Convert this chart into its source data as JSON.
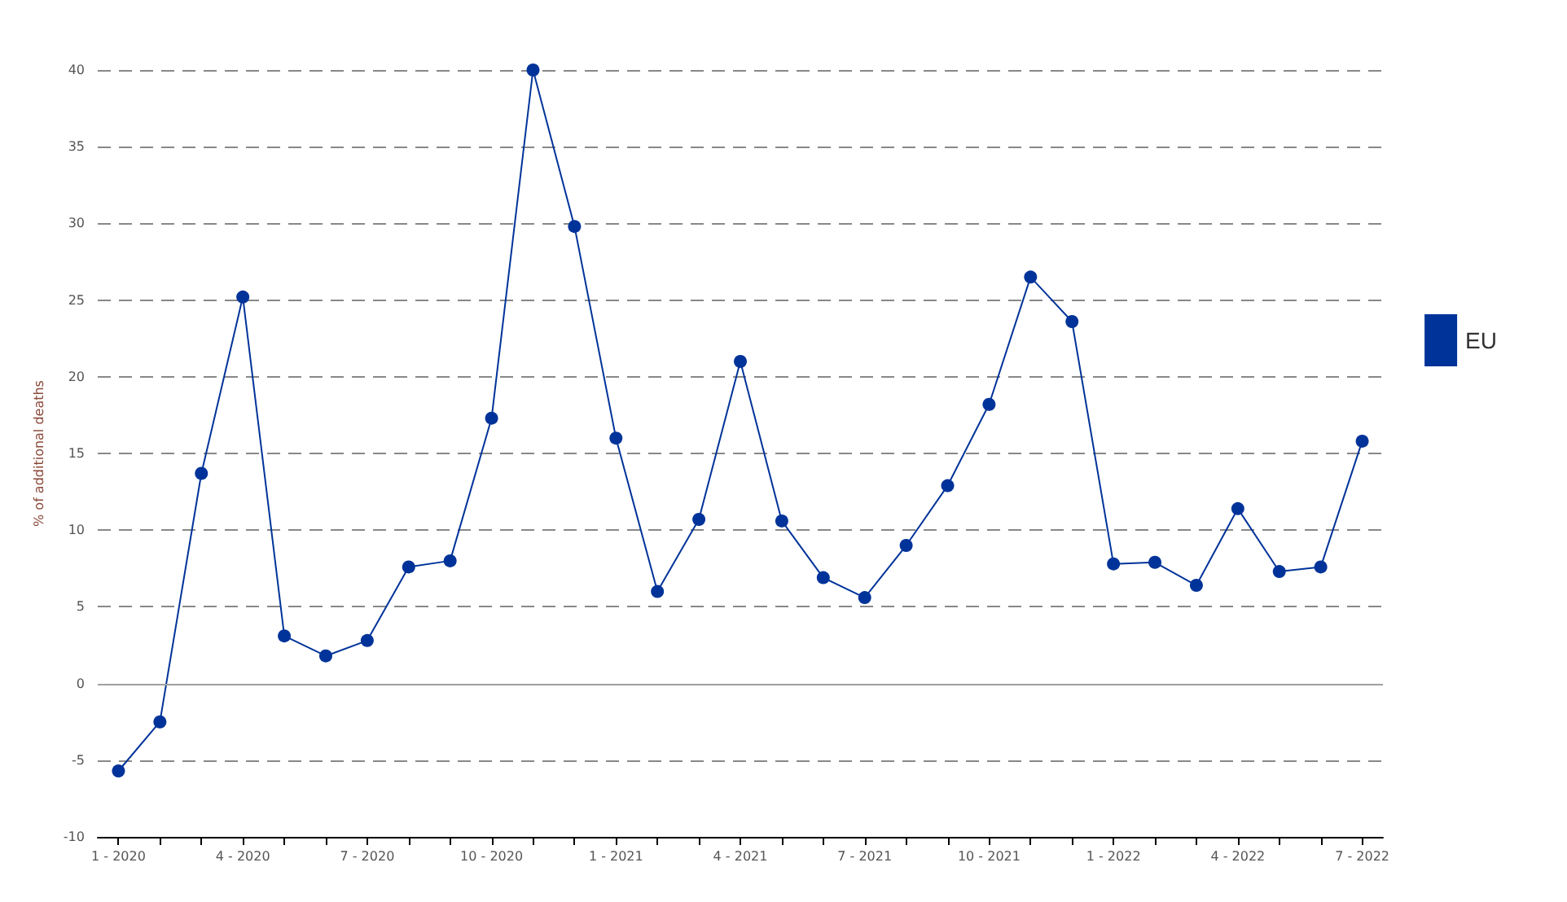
{
  "chart_data": {
    "type": "line",
    "ylabel": "% of additional deaths",
    "categories": [
      "1 - 2020",
      null,
      null,
      "4 - 2020",
      null,
      null,
      "7 - 2020",
      null,
      null,
      "10 - 2020",
      null,
      null,
      "1 - 2021",
      null,
      null,
      "4 - 2021",
      null,
      null,
      "7 - 2021",
      null,
      null,
      "10 - 2021",
      null,
      null,
      "1 - 2022",
      null,
      null,
      "4 - 2022",
      null,
      null,
      "7 - 2022"
    ],
    "series": [
      {
        "name": "EU",
        "color": "#003399",
        "values": [
          -5.7,
          -2.5,
          13.7,
          25.2,
          3.1,
          1.8,
          2.8,
          7.6,
          8.0,
          17.3,
          40.0,
          29.8,
          16.0,
          6.0,
          10.7,
          21.0,
          10.6,
          6.9,
          5.6,
          9.0,
          12.9,
          18.2,
          26.5,
          23.6,
          7.8,
          7.9,
          6.4,
          11.4,
          7.3,
          7.6,
          15.8
        ]
      }
    ],
    "ylim": [
      -10,
      40
    ],
    "yticks": [
      -10,
      -5,
      0,
      5,
      10,
      15,
      20,
      25,
      30,
      35,
      40
    ],
    "ref_lines": [
      {
        "axis": "y",
        "value": 0,
        "color": "#a0a0a0",
        "line_style": "solid"
      }
    ],
    "grid": "y",
    "legend": "right",
    "marker": "circle",
    "line_style": "solid"
  }
}
